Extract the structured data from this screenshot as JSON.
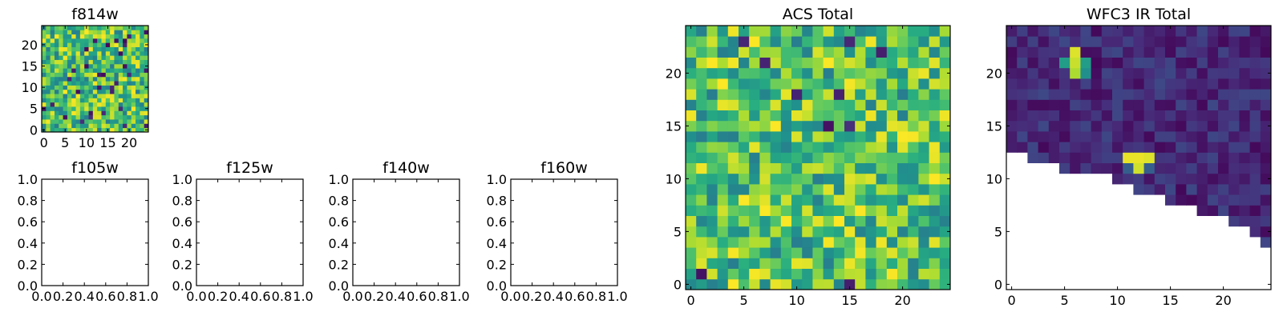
{
  "chart_data": [
    {
      "id": "f814w",
      "type": "heatmap",
      "title": "f814w",
      "colormap": "viridis",
      "grid": false,
      "nx": 25,
      "ny": 25,
      "xlim": [
        -0.5,
        24.5
      ],
      "ylim": [
        -0.5,
        24.5
      ],
      "xticks": [
        0,
        5,
        10,
        15,
        20
      ],
      "yticks": [
        0,
        5,
        10,
        15,
        20
      ],
      "xticklabels": [
        "0",
        "5",
        "10",
        "15",
        "20"
      ],
      "yticklabels": [
        "0",
        "5",
        "10",
        "15",
        "20"
      ],
      "value_range": [
        0,
        1
      ],
      "values_generator": {
        "kind": "pseudo-random",
        "seed": 814,
        "dark_fraction": 0.05
      }
    },
    {
      "id": "f105w",
      "type": "empty",
      "title": "f105w",
      "xlim": [
        0,
        1
      ],
      "ylim": [
        0,
        1
      ],
      "xticks": [
        0,
        0.2,
        0.4,
        0.6,
        0.8,
        1.0
      ],
      "yticks": [
        0,
        0.2,
        0.4,
        0.6,
        0.8,
        1.0
      ],
      "xticklabels": [
        "0.0",
        "0.2",
        "0.4",
        "0.6",
        "0.8",
        "1.0"
      ],
      "yticklabels": [
        "0.0",
        "0.2",
        "0.4",
        "0.6",
        "0.8",
        "1.0"
      ]
    },
    {
      "id": "f125w",
      "type": "empty",
      "title": "f125w",
      "xlim": [
        0,
        1
      ],
      "ylim": [
        0,
        1
      ],
      "xticks": [
        0,
        0.2,
        0.4,
        0.6,
        0.8,
        1.0
      ],
      "yticks": [
        0,
        0.2,
        0.4,
        0.6,
        0.8,
        1.0
      ],
      "xticklabels": [
        "0.0",
        "0.2",
        "0.4",
        "0.6",
        "0.8",
        "1.0"
      ],
      "yticklabels": [
        "0.0",
        "0.2",
        "0.4",
        "0.6",
        "0.8",
        "1.0"
      ]
    },
    {
      "id": "f140w",
      "type": "empty",
      "title": "f140w",
      "xlim": [
        0,
        1
      ],
      "ylim": [
        0,
        1
      ],
      "xticks": [
        0,
        0.2,
        0.4,
        0.6,
        0.8,
        1.0
      ],
      "yticks": [
        0,
        0.2,
        0.4,
        0.6,
        0.8,
        1.0
      ],
      "xticklabels": [
        "0.0",
        "0.2",
        "0.4",
        "0.6",
        "0.8",
        "1.0"
      ],
      "yticklabels": [
        "0.0",
        "0.2",
        "0.4",
        "0.6",
        "0.8",
        "1.0"
      ]
    },
    {
      "id": "f160w",
      "type": "empty",
      "title": "f160w",
      "xlim": [
        0,
        1
      ],
      "ylim": [
        0,
        1
      ],
      "xticks": [
        0,
        0.2,
        0.4,
        0.6,
        0.8,
        1.0
      ],
      "yticks": [
        0,
        0.2,
        0.4,
        0.6,
        0.8,
        1.0
      ],
      "xticklabels": [
        "0.0",
        "0.2",
        "0.4",
        "0.6",
        "0.8",
        "1.0"
      ],
      "yticklabels": [
        "0.0",
        "0.2",
        "0.4",
        "0.6",
        "0.8",
        "1.0"
      ]
    },
    {
      "id": "acs-total",
      "type": "heatmap",
      "title": "ACS Total",
      "colormap": "viridis",
      "grid": false,
      "nx": 25,
      "ny": 25,
      "xlim": [
        -0.5,
        24.5
      ],
      "ylim": [
        -0.5,
        24.5
      ],
      "xticks": [
        0,
        5,
        10,
        15,
        20
      ],
      "yticks": [
        0,
        5,
        10,
        15,
        20
      ],
      "xticklabels": [
        "0",
        "5",
        "10",
        "15",
        "20"
      ],
      "yticklabels": [
        "0",
        "5",
        "10",
        "15",
        "20"
      ],
      "value_range": [
        0,
        1
      ],
      "values_generator": {
        "kind": "pseudo-random",
        "seed": 42,
        "dark_fraction": 0.03
      }
    },
    {
      "id": "wfc3-ir-total",
      "type": "heatmap",
      "title": "WFC3 IR Total",
      "colormap": "viridis",
      "grid": false,
      "nx": 25,
      "ny": 25,
      "xlim": [
        -0.5,
        24.5
      ],
      "ylim": [
        -0.5,
        24.5
      ],
      "xticks": [
        0,
        5,
        10,
        15,
        20
      ],
      "yticks": [
        0,
        5,
        10,
        15,
        20
      ],
      "xticklabels": [
        "0",
        "5",
        "10",
        "15",
        "20"
      ],
      "yticklabels": [
        "0",
        "5",
        "10",
        "15",
        "20"
      ],
      "value_range": [
        0,
        1
      ],
      "values_generator": {
        "kind": "pseudo-random-low",
        "seed": 7,
        "low_range": [
          0.02,
          0.22
        ]
      },
      "masked_region": {
        "description": "lower-left triangular region is blank (NaN)",
        "first_valid_row_by_column": [
          13,
          13,
          12,
          12,
          12,
          11,
          11,
          11,
          11,
          11,
          10,
          10,
          9,
          9,
          9,
          8,
          8,
          8,
          7,
          7,
          7,
          6,
          6,
          5,
          4
        ]
      },
      "bright_pixels": [
        {
          "x": 6,
          "y": 22,
          "value": 0.95
        },
        {
          "x": 6,
          "y": 21,
          "value": 0.92
        },
        {
          "x": 6,
          "y": 20,
          "value": 0.88
        },
        {
          "x": 5,
          "y": 21,
          "value": 0.55
        },
        {
          "x": 7,
          "y": 21,
          "value": 0.55
        },
        {
          "x": 7,
          "y": 20,
          "value": 0.5
        },
        {
          "x": 11,
          "y": 12,
          "value": 0.97
        },
        {
          "x": 12,
          "y": 12,
          "value": 0.97
        },
        {
          "x": 13,
          "y": 12,
          "value": 0.95
        },
        {
          "x": 12,
          "y": 11,
          "value": 0.93
        },
        {
          "x": 11,
          "y": 11,
          "value": 0.3
        },
        {
          "x": 13,
          "y": 11,
          "value": 0.3
        }
      ]
    }
  ]
}
